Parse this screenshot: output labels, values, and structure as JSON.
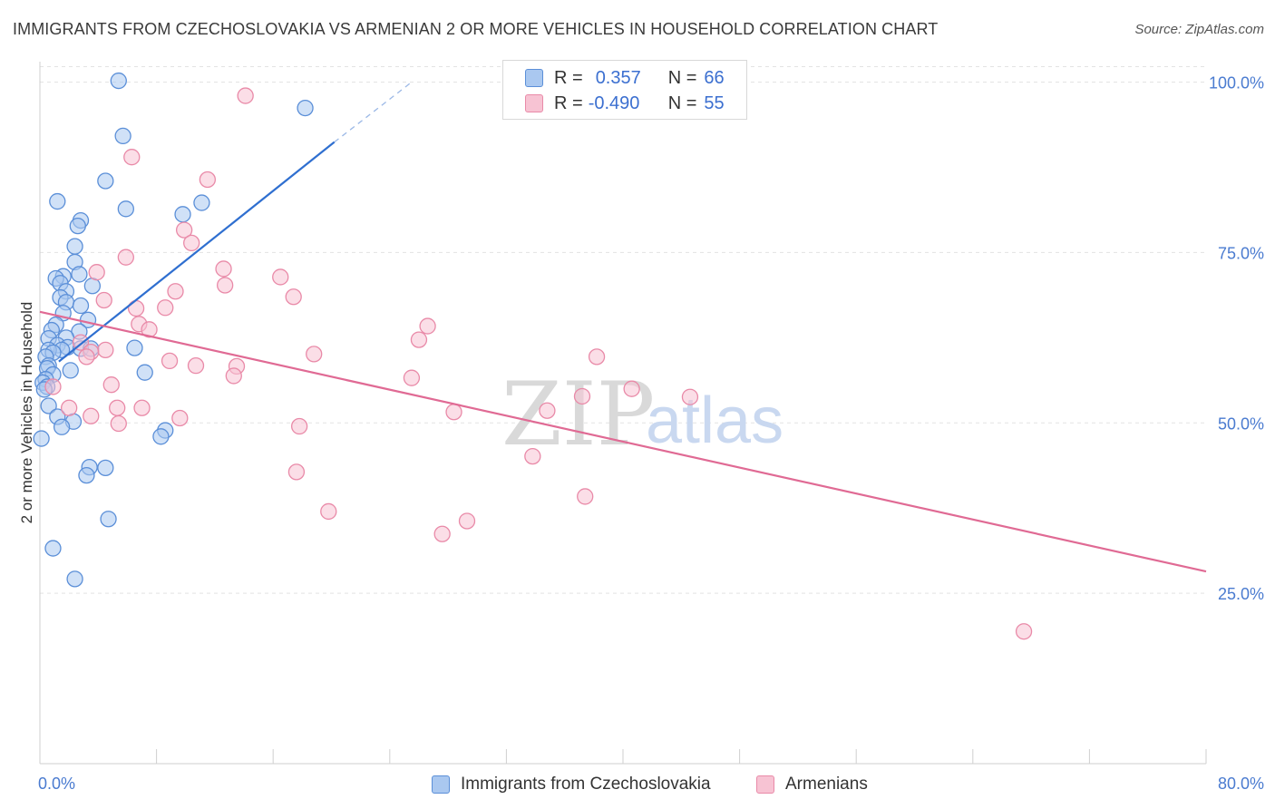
{
  "title": "IMMIGRANTS FROM CZECHOSLOVAKIA VS ARMENIAN 2 OR MORE VEHICLES IN HOUSEHOLD CORRELATION CHART",
  "source": "Source: ZipAtlas.com",
  "watermark": {
    "zip": "ZIP",
    "atlas": "atlas"
  },
  "legend": {
    "rows": [
      {
        "r_label": "R =",
        "r_value": "0.357",
        "n_label": "N =",
        "n_value": "66"
      },
      {
        "r_label": "R =",
        "r_value": "-0.490",
        "n_label": "N =",
        "n_value": "55"
      }
    ]
  },
  "bottom_legend": [
    "Immigrants from Czechoslovakia",
    "Armenians"
  ],
  "colors": {
    "blue_fill": "#aac8f0",
    "blue_stroke": "#5b8fd8",
    "blue_line": "#2f6fd0",
    "pink_fill": "#f7c3d3",
    "pink_stroke": "#e98aa8",
    "pink_line": "#e06a94",
    "tick_text": "#4a7bd0",
    "grid": "#e3e3e3"
  },
  "chart_data": {
    "type": "scatter",
    "title": "IMMIGRANTS FROM CZECHOSLOVAKIA VS ARMENIAN 2 OR MORE VEHICLES IN HOUSEHOLD CORRELATION CHART",
    "ylabel": "2 or more Vehicles in Household",
    "xlabel": "",
    "xlim": [
      0,
      80
    ],
    "ylim": [
      0,
      103
    ],
    "x_tick_labels": [
      {
        "value": 0,
        "label": "0.0%"
      },
      {
        "value": 80,
        "label": "80.0%"
      }
    ],
    "x_minor_ticks": [
      8,
      16,
      24,
      32,
      40,
      48,
      56,
      64,
      72
    ],
    "y_ticks": [
      {
        "value": 25,
        "label": "25.0%"
      },
      {
        "value": 50,
        "label": "50.0%"
      },
      {
        "value": 75,
        "label": "75.0%"
      },
      {
        "value": 100,
        "label": "100.0%"
      }
    ],
    "grid": true,
    "legend_position": "top-center",
    "series": [
      {
        "name": "Immigrants from Czechoslovakia",
        "color": "#aac8f0",
        "points": [
          [
            5.4,
            100.2
          ],
          [
            18.2,
            96.2
          ],
          [
            5.7,
            92.1
          ],
          [
            4.5,
            85.5
          ],
          [
            1.2,
            82.5
          ],
          [
            11.1,
            82.3
          ],
          [
            5.9,
            81.4
          ],
          [
            9.8,
            80.6
          ],
          [
            2.8,
            79.7
          ],
          [
            2.6,
            78.9
          ],
          [
            2.4,
            75.9
          ],
          [
            2.4,
            73.6
          ],
          [
            2.7,
            71.8
          ],
          [
            1.6,
            71.5
          ],
          [
            1.1,
            71.2
          ],
          [
            1.4,
            70.5
          ],
          [
            3.6,
            70.1
          ],
          [
            1.8,
            69.3
          ],
          [
            1.4,
            68.4
          ],
          [
            1.8,
            67.7
          ],
          [
            2.8,
            67.2
          ],
          [
            1.6,
            66.1
          ],
          [
            3.3,
            65.1
          ],
          [
            1.1,
            64.4
          ],
          [
            0.8,
            63.6
          ],
          [
            2.7,
            63.4
          ],
          [
            1.8,
            62.5
          ],
          [
            0.6,
            62.4
          ],
          [
            1.2,
            61.4
          ],
          [
            6.5,
            61.0
          ],
          [
            1.9,
            61.1
          ],
          [
            2.8,
            60.9
          ],
          [
            3.5,
            60.9
          ],
          [
            1.5,
            60.7
          ],
          [
            0.6,
            60.7
          ],
          [
            0.9,
            60.3
          ],
          [
            0.4,
            59.7
          ],
          [
            0.6,
            58.4
          ],
          [
            0.5,
            58.0
          ],
          [
            2.1,
            57.7
          ],
          [
            7.2,
            57.4
          ],
          [
            0.9,
            57.1
          ],
          [
            0.4,
            56.4
          ],
          [
            0.2,
            55.9
          ],
          [
            0.5,
            55.3
          ],
          [
            0.3,
            54.9
          ],
          [
            0.6,
            52.5
          ],
          [
            1.2,
            50.9
          ],
          [
            2.3,
            50.2
          ],
          [
            1.5,
            49.4
          ],
          [
            8.6,
            48.9
          ],
          [
            8.3,
            48.0
          ],
          [
            0.1,
            47.7
          ],
          [
            3.4,
            43.5
          ],
          [
            4.5,
            43.4
          ],
          [
            3.2,
            42.3
          ],
          [
            4.7,
            35.9
          ],
          [
            0.9,
            31.6
          ],
          [
            2.4,
            27.1
          ]
        ],
        "trend": {
          "x1": 1.3,
          "y1": 59.0,
          "x2": 20.2,
          "y2": 91.2,
          "dash_to_x": 25.5,
          "dash_to_y": 100.0
        }
      },
      {
        "name": "Armenians",
        "color": "#f7c3d3",
        "points": [
          [
            14.1,
            98.0
          ],
          [
            6.3,
            89.0
          ],
          [
            11.5,
            85.7
          ],
          [
            9.9,
            78.3
          ],
          [
            10.4,
            76.4
          ],
          [
            5.9,
            74.3
          ],
          [
            12.6,
            72.6
          ],
          [
            3.9,
            72.1
          ],
          [
            16.5,
            71.4
          ],
          [
            12.7,
            70.2
          ],
          [
            9.3,
            69.3
          ],
          [
            17.4,
            68.5
          ],
          [
            4.4,
            68.0
          ],
          [
            6.6,
            66.8
          ],
          [
            8.6,
            66.9
          ],
          [
            6.8,
            64.5
          ],
          [
            26.6,
            64.2
          ],
          [
            7.5,
            63.7
          ],
          [
            26.0,
            62.2
          ],
          [
            2.8,
            61.8
          ],
          [
            4.5,
            60.7
          ],
          [
            3.5,
            60.4
          ],
          [
            18.8,
            60.1
          ],
          [
            3.2,
            59.7
          ],
          [
            38.2,
            59.7
          ],
          [
            8.9,
            59.1
          ],
          [
            10.7,
            58.4
          ],
          [
            13.5,
            58.3
          ],
          [
            13.3,
            56.9
          ],
          [
            25.5,
            56.6
          ],
          [
            4.9,
            55.6
          ],
          [
            0.9,
            55.3
          ],
          [
            40.6,
            55.0
          ],
          [
            37.2,
            53.9
          ],
          [
            44.6,
            53.8
          ],
          [
            2.0,
            52.2
          ],
          [
            5.3,
            52.2
          ],
          [
            7.0,
            52.2
          ],
          [
            28.4,
            51.6
          ],
          [
            34.8,
            51.8
          ],
          [
            3.5,
            51.0
          ],
          [
            9.6,
            50.7
          ],
          [
            5.4,
            49.9
          ],
          [
            17.8,
            49.5
          ],
          [
            33.8,
            45.1
          ],
          [
            17.6,
            42.8
          ],
          [
            37.4,
            39.2
          ],
          [
            19.8,
            37.0
          ],
          [
            29.3,
            35.6
          ],
          [
            27.6,
            33.7
          ],
          [
            67.5,
            19.4
          ]
        ],
        "trend": {
          "x1": 0.0,
          "y1": 66.3,
          "x2": 80.0,
          "y2": 28.2
        }
      }
    ]
  }
}
